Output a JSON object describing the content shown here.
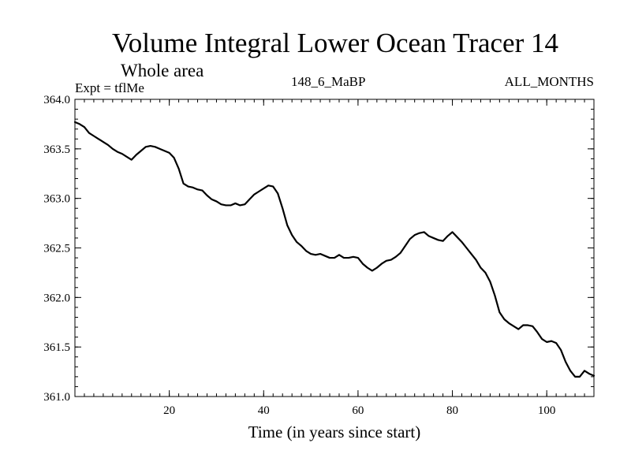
{
  "chart_data": {
    "type": "line",
    "title": "Volume Integral Lower Ocean Tracer 14",
    "subtitle": "Whole area",
    "experiment_label": "Expt = tflMe",
    "run_label": "148_6_MaBP",
    "season_label": "ALL_MONTHS",
    "xlabel": "Time (in years since start)",
    "ylabel": "",
    "xlim": [
      0,
      110
    ],
    "ylim": [
      361.0,
      364.0
    ],
    "x_ticks": [
      20,
      40,
      60,
      80,
      100
    ],
    "x_tick_labels": [
      "20",
      "40",
      "60",
      "80",
      "100"
    ],
    "y_ticks": [
      361.0,
      361.5,
      362.0,
      362.5,
      363.0,
      363.5,
      364.0
    ],
    "y_tick_labels": [
      "361.0",
      "361.5",
      "362.0",
      "362.5",
      "363.0",
      "363.5",
      "364.0"
    ],
    "grid": false,
    "series": [
      {
        "name": "Tracer 14",
        "color": "#000000",
        "x": [
          0,
          1,
          2,
          3,
          4,
          5,
          6,
          7,
          8,
          9,
          10,
          11,
          12,
          13,
          14,
          15,
          16,
          17,
          18,
          19,
          20,
          21,
          22,
          23,
          24,
          25,
          26,
          27,
          28,
          29,
          30,
          31,
          32,
          33,
          34,
          35,
          36,
          37,
          38,
          39,
          40,
          41,
          42,
          43,
          44,
          45,
          46,
          47,
          48,
          49,
          50,
          51,
          52,
          53,
          54,
          55,
          56,
          57,
          58,
          59,
          60,
          61,
          62,
          63,
          64,
          65,
          66,
          67,
          68,
          69,
          70,
          71,
          72,
          73,
          74,
          75,
          76,
          77,
          78,
          79,
          80,
          81,
          82,
          83,
          84,
          85,
          86,
          87,
          88,
          89,
          90,
          91,
          92,
          93,
          94,
          95,
          96,
          97,
          98,
          99,
          100,
          101,
          102,
          103,
          104,
          105,
          106,
          107,
          108,
          109,
          110
        ],
        "values": [
          363.77,
          363.75,
          363.72,
          363.66,
          363.63,
          363.6,
          363.57,
          363.54,
          363.5,
          363.47,
          363.45,
          363.42,
          363.39,
          363.44,
          363.48,
          363.52,
          363.53,
          363.52,
          363.5,
          363.48,
          363.46,
          363.41,
          363.3,
          363.15,
          363.12,
          363.11,
          363.09,
          363.08,
          363.03,
          362.99,
          362.97,
          362.94,
          362.93,
          362.93,
          362.95,
          362.93,
          362.94,
          362.99,
          363.04,
          363.07,
          363.1,
          363.13,
          363.12,
          363.05,
          362.9,
          362.73,
          362.63,
          362.56,
          362.52,
          362.47,
          362.44,
          362.43,
          362.44,
          362.42,
          362.4,
          362.4,
          362.43,
          362.4,
          362.4,
          362.41,
          362.4,
          362.34,
          362.3,
          362.27,
          362.3,
          362.34,
          362.37,
          362.38,
          362.41,
          362.45,
          362.52,
          362.59,
          362.63,
          362.65,
          362.66,
          362.62,
          362.6,
          362.58,
          362.57,
          362.62,
          362.66,
          362.61,
          362.56,
          362.5,
          362.44,
          362.38,
          362.3,
          362.25,
          362.16,
          362.02,
          361.85,
          361.78,
          361.74,
          361.71,
          361.68,
          361.72,
          361.72,
          361.71,
          361.65,
          361.58,
          361.55,
          361.56,
          361.54,
          361.47,
          361.35,
          361.26,
          361.2,
          361.2,
          361.26,
          361.23,
          361.21
        ]
      }
    ]
  }
}
